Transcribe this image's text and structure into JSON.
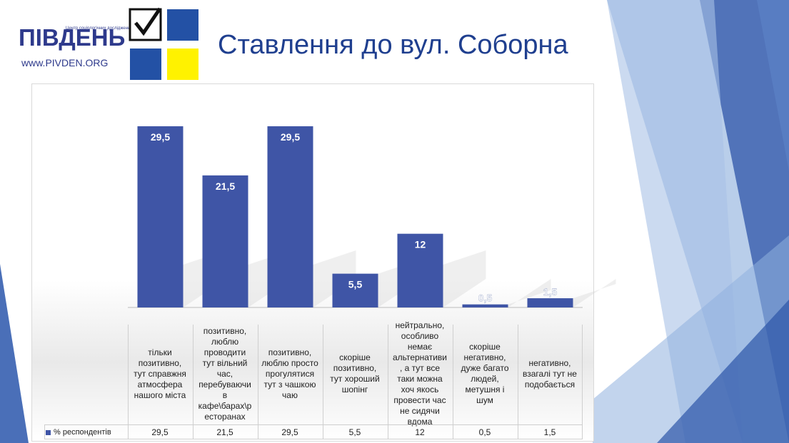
{
  "logo": {
    "name": "ПІВДЕНЬ",
    "subtitle": "Центр соціологічних досліджень",
    "url": "www.PIVDEN.ORG"
  },
  "title": "Ставлення до вул. Соборна",
  "colors": {
    "bar": "#3f55a6",
    "title": "#1f3f8f",
    "logo_blue": "#2351a5",
    "logo_yellow": "#fff200"
  },
  "chart_data": {
    "type": "bar",
    "categories": [
      "тільки позитивно, тут справжня атмосфера нашого міста",
      "позитивно, люблю проводити тут вільний час, перебуваючи в кафе\\барах\\ресторанах",
      "позитивно, люблю просто прогулятися тут з чашкою чаю",
      "скоріше позитивно, тут хороший шопінг",
      "нейтрально, особливо немає альтернативи, а тут все таки можна хоч якось провести час не сидячи вдома",
      "скоріше негативно, дуже багато людей, метушня і шум",
      "негативно, взагалі тут не подобається"
    ],
    "category_lines": [
      [
        "тільки",
        "позитивно,",
        "тут справжня",
        "атмосфера",
        "нашого міста"
      ],
      [
        "позитивно,",
        "люблю",
        "проводити",
        "тут вільний",
        "час,",
        "перебуваючи",
        "в",
        "кафе\\барах\\р",
        "есторанах"
      ],
      [
        "позитивно,",
        "люблю просто",
        "прогулятися",
        "тут з чашкою",
        "чаю"
      ],
      [
        "скоріше",
        "позитивно,",
        "тут хороший",
        "шопінг"
      ],
      [
        "нейтрально,",
        "особливо",
        "немає",
        "альтернативи",
        ", а тут все",
        "таки можна",
        "хоч якось",
        "провести час",
        "не сидячи",
        "вдома"
      ],
      [
        "скоріше",
        "негативно,",
        "дуже багато",
        "людей,",
        "метушня і",
        "шум"
      ],
      [
        "негативно,",
        "взагалі тут не",
        "подобається"
      ]
    ],
    "series": [
      {
        "name": "% респондентів",
        "values": [
          29.5,
          21.5,
          29.5,
          5.5,
          12,
          0.5,
          1.5
        ],
        "labels": [
          "29,5",
          "21,5",
          "29,5",
          "5,5",
          "12",
          "0,5",
          "1,5"
        ]
      }
    ],
    "ylim": [
      0,
      35
    ],
    "grid": false,
    "data_table": true
  }
}
